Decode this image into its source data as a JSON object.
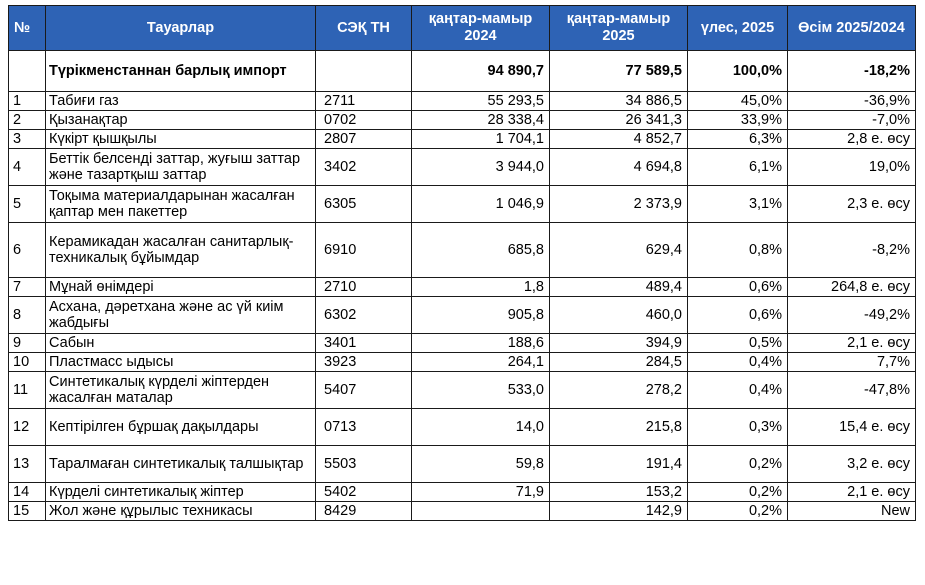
{
  "header": {
    "no": "№",
    "goods": "Тауарлар",
    "code": "СЭҚ ТН",
    "period_2024": "қаңтар-мамыр 2024",
    "period_2025": "қаңтар-мамыр 2025",
    "share": "үлес, 2025",
    "growth": "Өсім 2025/2024"
  },
  "total": {
    "name": "Түрікменстаннан барлық импорт",
    "v2024": "94 890,7",
    "v2025": "77 589,5",
    "share": "100,0%",
    "growth": "-18,2%"
  },
  "rows": [
    {
      "no": "1",
      "name": "Табиғи газ",
      "code": "2711",
      "v2024": "55 293,5",
      "v2025": "34 886,5",
      "share": "45,0%",
      "growth": "-36,9%"
    },
    {
      "no": "2",
      "name": "Қызанақтар",
      "code": "0702",
      "v2024": "28 338,4",
      "v2025": "26 341,3",
      "share": "33,9%",
      "growth": "-7,0%"
    },
    {
      "no": "3",
      "name": "Күкірт қышқылы",
      "code": "2807",
      "v2024": "1 704,1",
      "v2025": "4 852,7",
      "share": "6,3%",
      "growth": "2,8 е. өсу"
    },
    {
      "no": "4",
      "name": "Беттік белсенді заттар, жуғыш заттар және тазартқыш заттар",
      "code": "3402",
      "v2024": "3 944,0",
      "v2025": "4 694,8",
      "share": "6,1%",
      "growth": "19,0%"
    },
    {
      "no": "5",
      "name": "Тоқыма материалдарынан жасалған қаптар мен пакеттер",
      "code": "6305",
      "v2024": "1 046,9",
      "v2025": "2 373,9",
      "share": "3,1%",
      "growth": "2,3 е. өсу"
    },
    {
      "no": "6",
      "name": "Керамикадан жасалған санитарлық-техникалық бұйымдар",
      "code": "6910",
      "v2024": "685,8",
      "v2025": "629,4",
      "share": "0,8%",
      "growth": "-8,2%"
    },
    {
      "no": "7",
      "name": "Мұнай өнімдері",
      "code": "2710",
      "v2024": "1,8",
      "v2025": "489,4",
      "share": "0,6%",
      "growth": "264,8 е. өсу"
    },
    {
      "no": "8",
      "name": "Асхана, дәретхана және ас үй киім жабдығы",
      "code": "6302",
      "v2024": "905,8",
      "v2025": "460,0",
      "share": "0,6%",
      "growth": "-49,2%"
    },
    {
      "no": "9",
      "name": "Сабын",
      "code": "3401",
      "v2024": "188,6",
      "v2025": "394,9",
      "share": "0,5%",
      "growth": "2,1 е. өсу"
    },
    {
      "no": "10",
      "name": "Пластмасс ыдысы",
      "code": "3923",
      "v2024": "264,1",
      "v2025": "284,5",
      "share": "0,4%",
      "growth": "7,7%"
    },
    {
      "no": "11",
      "name": "Синтетикалық күрделі жіптерден жасалған маталар",
      "code": "5407",
      "v2024": "533,0",
      "v2025": "278,2",
      "share": "0,4%",
      "growth": "-47,8%"
    },
    {
      "no": "12",
      "name": "Кептірілген бұршақ дақылдары",
      "code": "0713",
      "v2024": "14,0",
      "v2025": "215,8",
      "share": "0,3%",
      "growth": "15,4 е. өсу"
    },
    {
      "no": "13",
      "name": "Таралмаған синтетикалық талшықтар",
      "code": "5503",
      "v2024": "59,8",
      "v2025": "191,4",
      "share": "0,2%",
      "growth": "3,2 е. өсу"
    },
    {
      "no": "14",
      "name": "Күрделі синтетикалық жіптер",
      "code": "5402",
      "v2024": "71,9",
      "v2025": "153,2",
      "share": "0,2%",
      "growth": "2,1 е. өсу"
    },
    {
      "no": "15",
      "name": "Жол және құрылыс техникасы",
      "code": "8429",
      "v2024": "",
      "v2025": "142,9",
      "share": "0,2%",
      "growth": "New"
    }
  ]
}
